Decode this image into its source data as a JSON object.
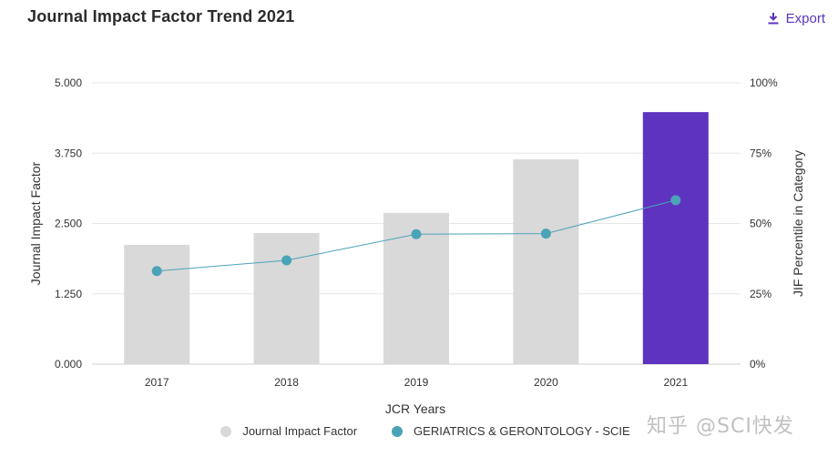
{
  "header": {
    "title": "Journal Impact Factor Trend 2021",
    "export_label": "Export"
  },
  "colors": {
    "bar_default": "#d9d9d9",
    "bar_highlight": "#5e33bf",
    "line": "#4ba3b8",
    "accent": "#5e33bf"
  },
  "chart_data": {
    "type": "bar",
    "title": "Journal Impact Factor Trend 2021",
    "xlabel": "JCR Years",
    "ylabel": "Journal Impact Factor",
    "y2label": "JIF Percentile in Category",
    "categories": [
      "2017",
      "2018",
      "2019",
      "2020",
      "2021"
    ],
    "ylim": [
      0,
      5
    ],
    "y2lim": [
      0,
      100
    ],
    "yticks": [
      "0.000",
      "1.250",
      "2.500",
      "3.750",
      "5.000"
    ],
    "y2ticks": [
      "0%",
      "25%",
      "50%",
      "75%",
      "100%"
    ],
    "series": [
      {
        "name": "Journal Impact Factor",
        "kind": "bar",
        "axis": "left",
        "values": [
          2.12,
          2.33,
          2.69,
          3.64,
          4.48
        ]
      },
      {
        "name": "GERIATRICS & GERONTOLOGY - SCIE",
        "kind": "line",
        "axis": "right",
        "values": [
          33.1,
          36.9,
          46.2,
          46.4,
          58.3
        ]
      }
    ],
    "highlight_category": "2021",
    "legend_position": "bottom-center"
  },
  "watermark": "知乎 @SCI快发"
}
